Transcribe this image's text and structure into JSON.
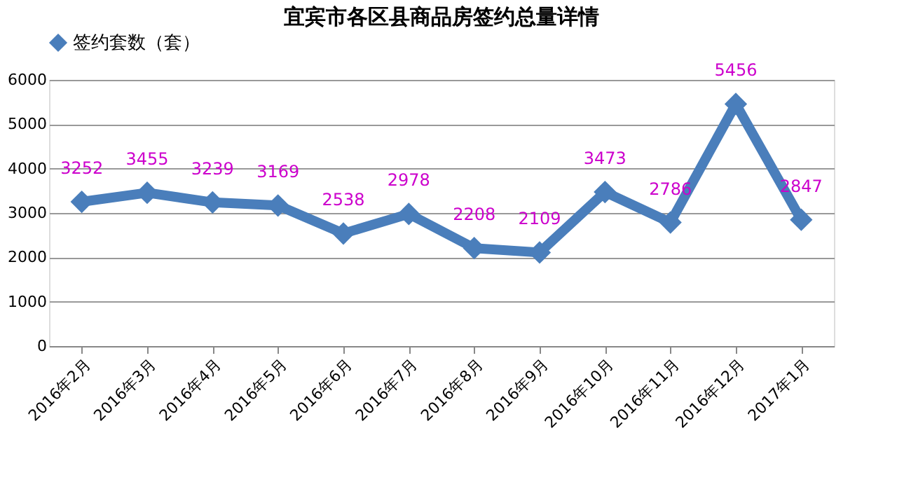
{
  "chart_data": {
    "type": "line",
    "title": "宜宾市各区县商品房签约总量详情",
    "categories": [
      "2016年2月",
      "2016年3月",
      "2016年4月",
      "2016年5月",
      "2016年6月",
      "2016年7月",
      "2016年8月",
      "2016年9月",
      "2016年10月",
      "2016年11月",
      "2016年12月",
      "2017年1月"
    ],
    "series": [
      {
        "name": "签约套数（套）",
        "color": "#4a7ebb",
        "values": [
          3252,
          3455,
          3239,
          3169,
          2538,
          2978,
          2208,
          2109,
          3473,
          2786,
          5456,
          2847
        ]
      }
    ],
    "ylim": [
      0,
      6000
    ],
    "yticks": [
      0,
      1000,
      2000,
      3000,
      4000,
      5000,
      6000
    ],
    "grid": "y",
    "legend": "top",
    "marker": "diamond",
    "line_style": "solid",
    "data_labels": true
  }
}
